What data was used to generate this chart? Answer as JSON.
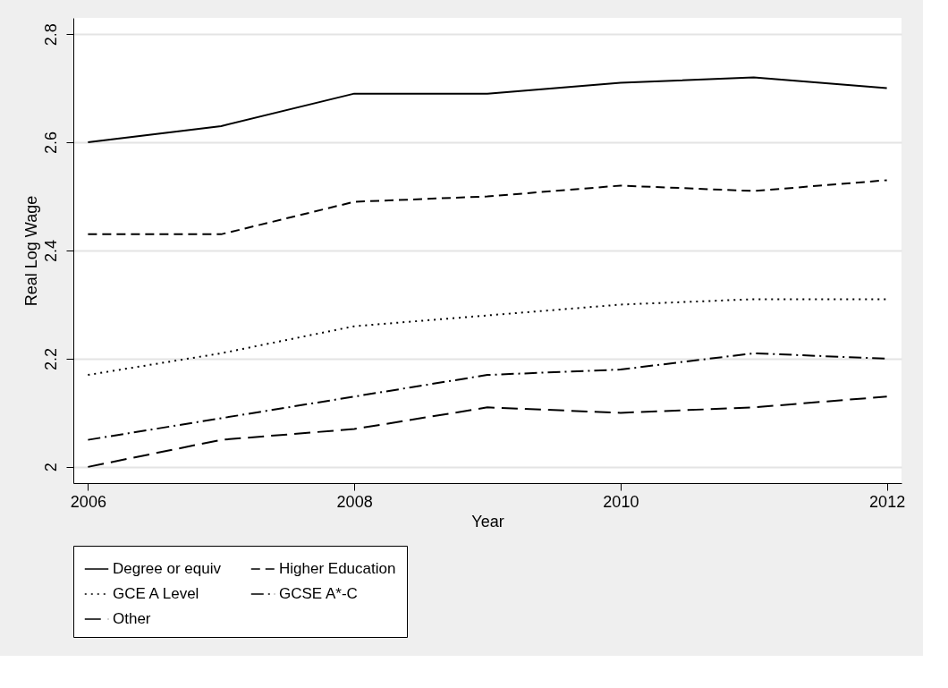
{
  "chart_data": {
    "type": "line",
    "xlabel": "Year",
    "ylabel": "Real Log Wage",
    "x": [
      2006,
      2007,
      2008,
      2009,
      2010,
      2011,
      2012
    ],
    "xlim": [
      2005.89,
      2012.11
    ],
    "xticks": [
      2006,
      2008,
      2010,
      2012
    ],
    "ylim": [
      1.97,
      2.83
    ],
    "yticks": [
      2,
      2.2,
      2.4,
      2.6,
      2.8
    ],
    "grid": "y",
    "legend": "bottom",
    "marker": "none",
    "series": [
      {
        "name": "Degree or equiv",
        "color": "#000000",
        "line_style": "solid",
        "values": [
          2.6,
          2.63,
          2.69,
          2.69,
          2.71,
          2.72,
          2.7
        ]
      },
      {
        "name": "Higher Education",
        "color": "#000000",
        "line_style": "dashed",
        "values": [
          2.43,
          2.43,
          2.49,
          2.5,
          2.52,
          2.51,
          2.53
        ]
      },
      {
        "name": "GCE A Level",
        "color": "#000000",
        "line_style": "dotted",
        "values": [
          2.17,
          2.21,
          2.26,
          2.28,
          2.3,
          2.31,
          2.31
        ]
      },
      {
        "name": "GCSE A*-C",
        "color": "#000000",
        "line_style": "dashdot",
        "values": [
          2.05,
          2.09,
          2.13,
          2.17,
          2.18,
          2.21,
          2.2
        ]
      },
      {
        "name": "Other",
        "color": "#000000",
        "line_style": "longdash",
        "values": [
          2.0,
          2.05,
          2.07,
          2.11,
          2.1,
          2.11,
          2.13
        ]
      }
    ]
  }
}
